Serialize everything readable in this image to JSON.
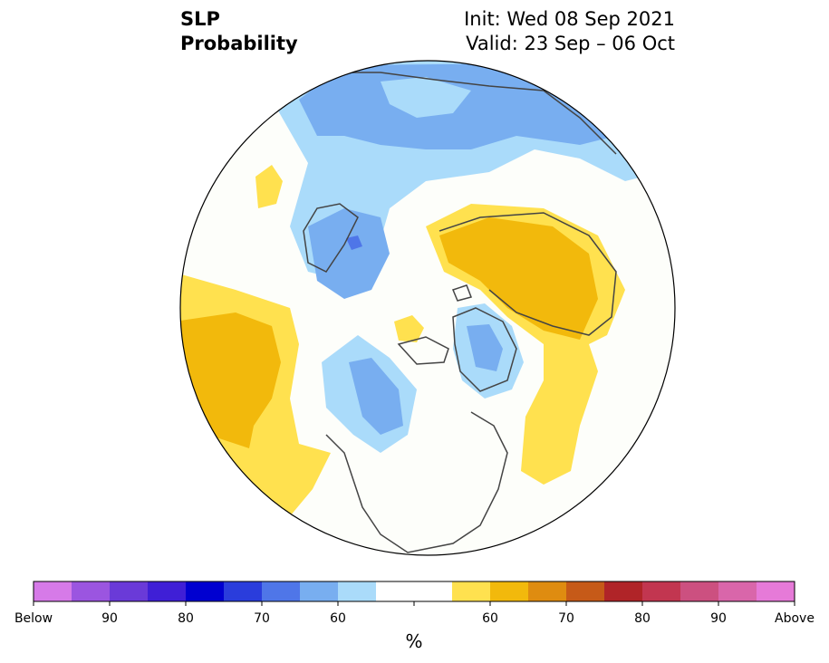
{
  "title": {
    "variable": "SLP",
    "kind": "Probability",
    "init": "Init: Wed 08 Sep 2021",
    "valid": "Valid: 23 Sep – 06 Oct"
  },
  "colorbar": {
    "unit": "%",
    "ticks": [
      "Below",
      "90",
      "80",
      "70",
      "60",
      "60",
      "70",
      "80",
      "90",
      "Above"
    ],
    "colors": [
      "#d67ae8",
      "#9b55e0",
      "#6a3ad8",
      "#3f1fd6",
      "#0000d0",
      "#2a3ddc",
      "#4f76e8",
      "#78aef0",
      "#aadbfa",
      "#ffffff",
      "#ffffff",
      "#ffe14f",
      "#f2b90c",
      "#df8c10",
      "#c65a18",
      "#b02428",
      "#c23650",
      "#cc5080",
      "#d966aa",
      "#e67ad8"
    ]
  },
  "map": {
    "projection": "north-polar-stereographic",
    "fill_colors": {
      "light_blue": "#aadbfa",
      "mid_blue": "#78aef0",
      "blue": "#4f76e8",
      "dark_blue": "#2a3ddc",
      "light_yellow": "#ffe14f",
      "gold": "#f2b90c",
      "background": "#fdfefa",
      "coast": "#444444"
    }
  }
}
